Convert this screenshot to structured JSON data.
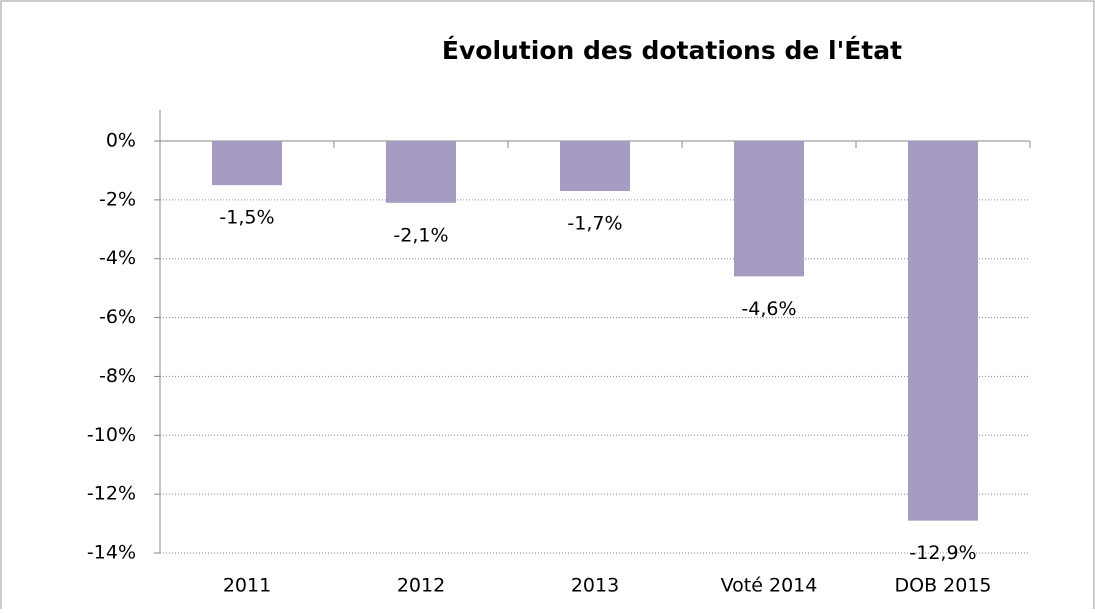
{
  "chart_data": {
    "type": "bar",
    "title": "Évolution des dotations de l'État",
    "categories": [
      "2011",
      "2012",
      "2013",
      "Voté 2014",
      "DOB 2015"
    ],
    "values": [
      -1.5,
      -2.1,
      -1.7,
      -4.6,
      -12.9
    ],
    "value_labels": [
      "-1,5%",
      "-2,1%",
      "-1,7%",
      "-4,6%",
      "-12,9%"
    ],
    "color": "#a69bc1",
    "ylim": [
      -14,
      0
    ],
    "yticks": [
      {
        "value": 0,
        "label": "0%"
      },
      {
        "value": -2,
        "label": "-2%"
      },
      {
        "value": -4,
        "label": "-4%"
      },
      {
        "value": -6,
        "label": "-6%"
      },
      {
        "value": -8,
        "label": "-8%"
      },
      {
        "value": -10,
        "label": "-10%"
      },
      {
        "value": -12,
        "label": "-12%"
      },
      {
        "value": -14,
        "label": "-14%"
      }
    ],
    "grid": true
  }
}
